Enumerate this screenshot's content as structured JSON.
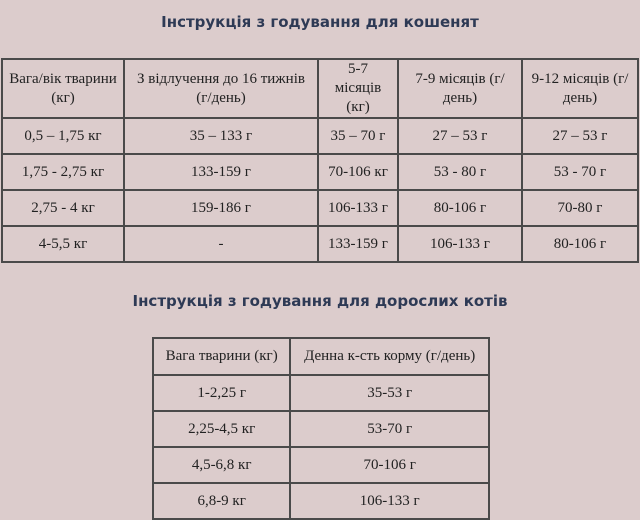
{
  "kittens": {
    "title": "Інструкція з годування для кошенят",
    "headers": [
      "Вага/вік тварини (кг)",
      "З відлучення до 16 тижнів (г/день)",
      "5-7 місяців (кг)",
      "7-9 місяців (г/день)",
      "9-12 місяців (г/день)"
    ],
    "rows": [
      [
        "0,5 – 1,75 кг",
        "35 – 133 г",
        "35 – 70 г",
        "27 – 53 г",
        "27 – 53 г"
      ],
      [
        "1,75 - 2,75 кг",
        "133-159 г",
        "70-106 кг",
        "53 - 80 г",
        "53 - 70 г"
      ],
      [
        "2,75 - 4 кг",
        "159-186 г",
        "106-133 г",
        "80-106 г",
        "70-80 г"
      ],
      [
        "4-5,5 кг",
        "-",
        "133-159 г",
        "106-133 г",
        "80-106 г"
      ]
    ]
  },
  "adults": {
    "title": "Інструкція з годування для дорослих котів",
    "headers": [
      "Вага тварини (кг)",
      "Денна к-сть корму (г/день)"
    ],
    "rows": [
      [
        "1-2,25 г",
        "35-53 г"
      ],
      [
        "2,25-4,5 кг",
        "53-70 г"
      ],
      [
        "4,5-6,8 кг",
        "70-106 г"
      ],
      [
        "6,8-9 кг",
        "106-133 г"
      ]
    ]
  }
}
